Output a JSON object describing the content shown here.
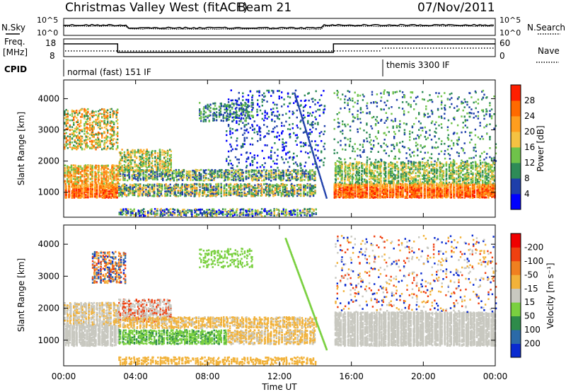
{
  "title": {
    "station": "Christmas Valley West (fitACF)",
    "beam": "Beam 21",
    "date": "07/Nov/2011"
  },
  "header_panels": {
    "nsky_label": "N.Sky",
    "nsearch_label": "N.Search",
    "nsky_ticks": [
      "10^5",
      "10^0"
    ],
    "nsearch_ticks": [
      "10^5",
      "10^0"
    ],
    "freq_label_1": "Freq.",
    "freq_label_2": "[MHz]",
    "freq_ticks": [
      "18",
      "8"
    ],
    "nave_label": "Nave",
    "nave_ticks": [
      "60",
      "0"
    ],
    "cpid_label": "CPID",
    "cpid_segments": [
      {
        "label": "normal (fast) 151 IF",
        "start_hour": 0,
        "end_hour": 18
      },
      {
        "label": "themis 3300 IF",
        "start_hour": 18,
        "end_hour": 24
      }
    ],
    "freq_trace": [
      {
        "start_hour": 0,
        "end_hour": 3.0,
        "level": "high"
      },
      {
        "start_hour": 3.0,
        "end_hour": 15.0,
        "level": "low"
      },
      {
        "start_hour": 15.0,
        "end_hour": 24,
        "level": "high"
      }
    ]
  },
  "chart_data": [
    {
      "type": "heatmap",
      "quantity": "power",
      "ylabel": "Slant Range [km]",
      "ylim": [
        200,
        4600
      ],
      "yticks": [
        "1000",
        "2000",
        "3000",
        "4000"
      ],
      "colorbar_label": "Power [dB]",
      "colorbar_ticks": [
        "4",
        "8",
        "12",
        "16",
        "20",
        "24",
        "28"
      ],
      "colorbar_colors": [
        "#0000ff",
        "#1e3faa",
        "#2e8b57",
        "#6fc34a",
        "#f5c242",
        "#ff9e1e",
        "#ff6a00",
        "#ff1f00"
      ]
    },
    {
      "type": "heatmap",
      "quantity": "velocity",
      "ylabel": "Slant Range [km]",
      "ylim": [
        200,
        4600
      ],
      "yticks": [
        "1000",
        "2000",
        "3000",
        "4000"
      ],
      "colorbar_label": "Velocity [m s⁻¹]",
      "colorbar_ticks": [
        "200",
        "100",
        "50",
        "15",
        "-15",
        "-50",
        "-100",
        "-200"
      ],
      "colorbar_colors": [
        "#0a2bd0",
        "#2b6aa8",
        "#2e8b4a",
        "#7ad040",
        "#c8c8c0",
        "#f2b23a",
        "#f08020",
        "#f04010",
        "#f00000"
      ]
    }
  ],
  "x_axis": {
    "label": "Time UT",
    "ticks": [
      "00:00",
      "04:00",
      "08:00",
      "12:00",
      "16:00",
      "20:00",
      "00:00"
    ],
    "range_hours": [
      0,
      24
    ]
  }
}
